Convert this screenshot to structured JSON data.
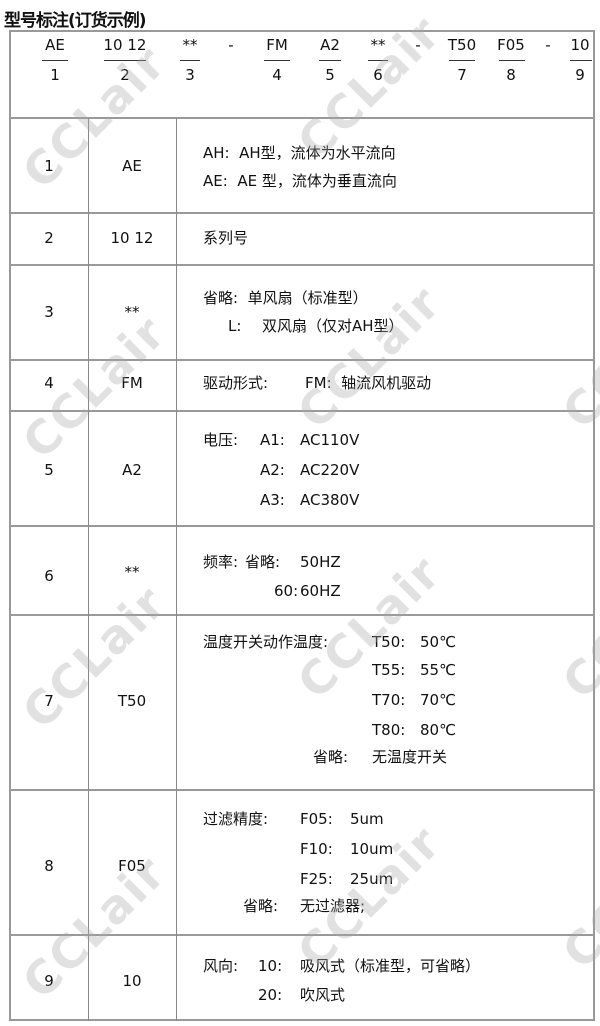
{
  "title": "型号标注(订货示例)",
  "watermark": "CCLair",
  "header": {
    "codes": [
      "AE",
      "10 12",
      "**",
      "-",
      "FM",
      "A2",
      "**",
      "-",
      "T50",
      "F05",
      "-",
      "10"
    ],
    "numbers": [
      "1",
      "2",
      "3",
      "4",
      "5",
      "6",
      "7",
      "8",
      "9"
    ]
  },
  "rows": [
    {
      "no": "1",
      "code": "AE",
      "lines": [
        "AH:  AH型，流体为水平流向",
        "AE:  AE 型，流体为垂直流向"
      ]
    },
    {
      "no": "2",
      "code": "10 12",
      "lines": [
        "系列号"
      ]
    },
    {
      "no": "3",
      "code": "**",
      "lines": [
        "省略:  单风扇（标准型）",
        "L:",
        "双风扇（仅对AH型）"
      ]
    },
    {
      "no": "4",
      "code": "FM",
      "lines": [
        "驱动形式:",
        "FM:  轴流风机驱动"
      ]
    },
    {
      "no": "5",
      "code": "A2",
      "lines": [
        "电压:",
        "A1:",
        "AC110V",
        "A2:",
        "AC220V",
        "A3:",
        "AC380V"
      ]
    },
    {
      "no": "6",
      "code": "**",
      "lines": [
        "频率:",
        "省略:",
        "50HZ",
        "60:",
        "60HZ"
      ]
    },
    {
      "no": "7",
      "code": "T50",
      "lines": [
        "温度开关动作温度:",
        "T50:",
        "50℃",
        "T55:",
        "55℃",
        "T70:",
        "70℃",
        "T80:",
        "80℃",
        "省略:",
        "无温度开关"
      ]
    },
    {
      "no": "8",
      "code": "F05",
      "lines": [
        "过滤精度:",
        "F05:",
        "5um",
        "F10:",
        "10um",
        "F25:",
        "25um",
        "省略:",
        "无过滤器;"
      ]
    },
    {
      "no": "9",
      "code": "10",
      "lines": [
        "风向:",
        "10:",
        "吸风式（标准型，可省略）",
        "20:",
        "吹风式"
      ]
    }
  ]
}
